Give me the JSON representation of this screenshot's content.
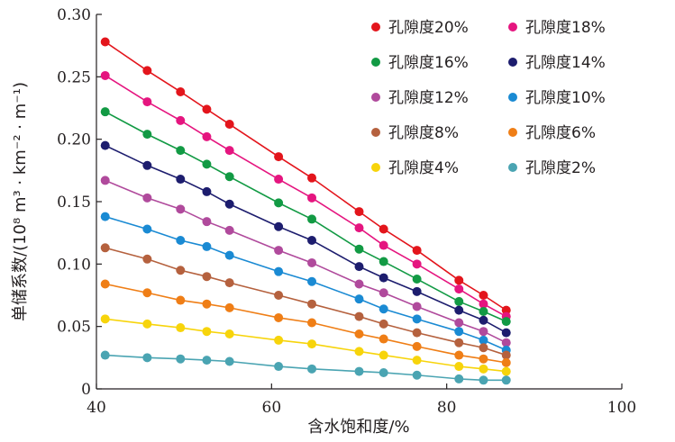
{
  "chart_data": {
    "type": "line",
    "xlabel": "含水饱和度/%",
    "ylabel": "单储系数/(10⁸ m³ · km⁻² · m⁻¹)",
    "xlim": [
      40,
      100
    ],
    "ylim": [
      0,
      0.3
    ],
    "x_ticks": [
      "40",
      "60",
      "80",
      "100"
    ],
    "y_ticks": [
      "0",
      "0.05",
      "0.10",
      "0.15",
      "0.20",
      "0.25",
      "0.30"
    ],
    "legend_position": "top-right",
    "x": [
      41,
      45.8,
      49.6,
      52.6,
      55.2,
      60.8,
      64.6,
      70,
      72.8,
      76.6,
      81.4,
      84.2,
      86.8
    ],
    "series": [
      {
        "name": "孔隙度20%",
        "color": "#e3151c",
        "values": [
          0.278,
          0.255,
          0.238,
          0.224,
          0.212,
          0.186,
          0.169,
          0.142,
          0.128,
          0.111,
          0.087,
          0.075,
          0.063
        ]
      },
      {
        "name": "孔隙度18%",
        "color": "#e5157f",
        "values": [
          0.251,
          0.23,
          0.215,
          0.202,
          0.191,
          0.168,
          0.153,
          0.129,
          0.115,
          0.1,
          0.08,
          0.068,
          0.058
        ]
      },
      {
        "name": "孔隙度16%",
        "color": "#129a44",
        "values": [
          0.222,
          0.204,
          0.191,
          0.18,
          0.17,
          0.149,
          0.136,
          0.112,
          0.102,
          0.088,
          0.07,
          0.062,
          0.054
        ]
      },
      {
        "name": "孔隙度14%",
        "color": "#1d1d6e",
        "values": [
          0.195,
          0.179,
          0.168,
          0.158,
          0.148,
          0.13,
          0.119,
          0.098,
          0.089,
          0.078,
          0.063,
          0.055,
          0.045
        ]
      },
      {
        "name": "孔隙度12%",
        "color": "#b04a9c",
        "values": [
          0.167,
          0.153,
          0.144,
          0.134,
          0.127,
          0.111,
          0.101,
          0.084,
          0.077,
          0.066,
          0.053,
          0.046,
          0.037
        ]
      },
      {
        "name": "孔隙度10%",
        "color": "#1a8ad3",
        "values": [
          0.138,
          0.128,
          0.119,
          0.114,
          0.107,
          0.094,
          0.086,
          0.072,
          0.064,
          0.056,
          0.046,
          0.039,
          0.031
        ]
      },
      {
        "name": "孔隙度8%",
        "color": "#b5613e",
        "values": [
          0.113,
          0.104,
          0.095,
          0.09,
          0.085,
          0.075,
          0.068,
          0.058,
          0.052,
          0.045,
          0.037,
          0.033,
          0.027
        ]
      },
      {
        "name": "孔隙度6%",
        "color": "#ef7e16",
        "values": [
          0.084,
          0.077,
          0.071,
          0.068,
          0.065,
          0.057,
          0.053,
          0.044,
          0.04,
          0.034,
          0.027,
          0.024,
          0.021
        ]
      },
      {
        "name": "孔隙度4%",
        "color": "#f7d40b",
        "values": [
          0.056,
          0.052,
          0.049,
          0.046,
          0.044,
          0.039,
          0.036,
          0.03,
          0.027,
          0.023,
          0.018,
          0.016,
          0.014
        ]
      },
      {
        "name": "孔隙度2%",
        "color": "#4aa4b2",
        "values": [
          0.027,
          0.025,
          0.024,
          0.023,
          0.022,
          0.018,
          0.016,
          0.014,
          0.013,
          0.011,
          0.008,
          0.007,
          0.007
        ]
      }
    ]
  }
}
